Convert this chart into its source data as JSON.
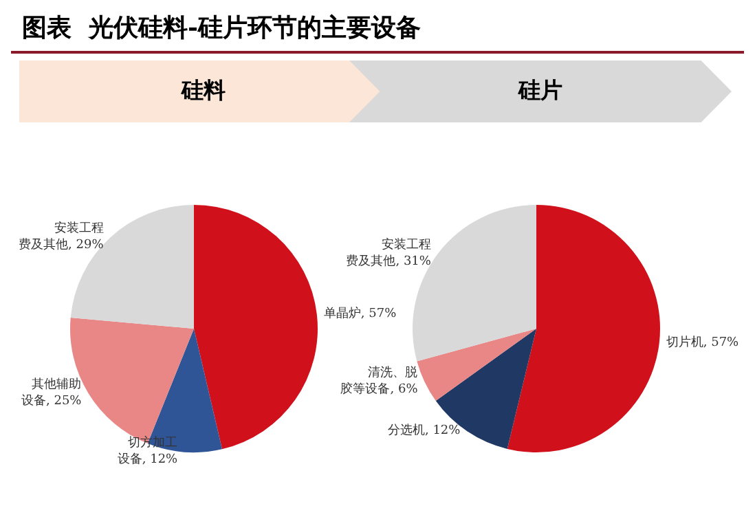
{
  "chart_data": [
    {
      "type": "pie",
      "title": "硅料",
      "annotations": [
        "图表  光伏硅料-硅片环节的主要设备"
      ],
      "categories": [
        "单晶炉",
        "切方加工设备",
        "其他辅助设备",
        "安装工程费及其他"
      ],
      "values": [
        57,
        12,
        25,
        29
      ],
      "value_labels": [
        "57%",
        "12%",
        "25%",
        "29%"
      ],
      "colors": [
        "#d0111b",
        "#2f5597",
        "#e98686",
        "#d9d9d9"
      ],
      "legend": false
    },
    {
      "type": "pie",
      "title": "硅片",
      "categories": [
        "切片机",
        "分选机",
        "清洗、脱胶等设备",
        "安装工程费及其他"
      ],
      "values": [
        57,
        12,
        6,
        31
      ],
      "value_labels": [
        "57%",
        "12%",
        "6%",
        "31%"
      ],
      "colors": [
        "#d0111b",
        "#1f3864",
        "#e98686",
        "#d9d9d9"
      ],
      "legend": false
    }
  ]
}
